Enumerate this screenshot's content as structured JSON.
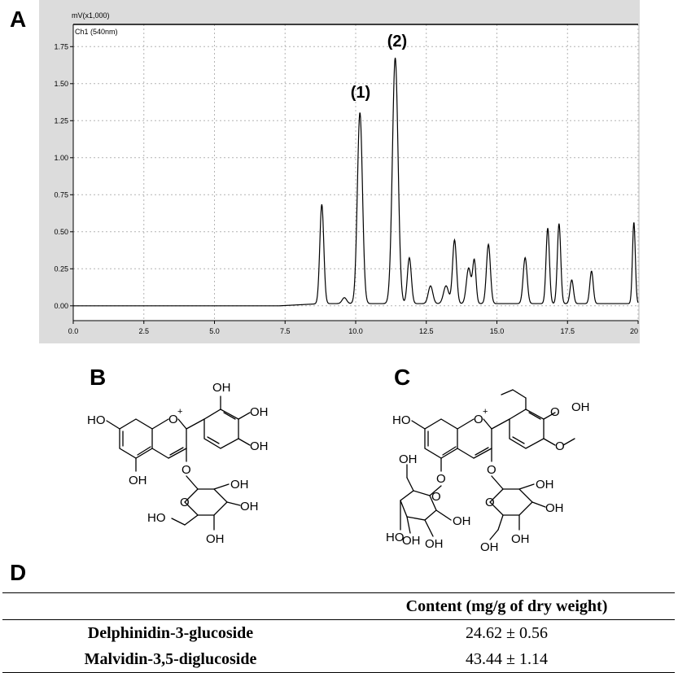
{
  "panels": {
    "a": "A",
    "b": "B",
    "c": "C",
    "d": "D"
  },
  "chromatogram": {
    "y_unit_label": "mV(x1,000)",
    "channel_label": "Ch1 (540nm)",
    "peak_labels": [
      "(1)",
      "(2)"
    ]
  },
  "chart_data": {
    "type": "line",
    "title": "",
    "xlabel": "",
    "ylabel": "mV(x1,000)",
    "xlim": [
      0,
      20
    ],
    "ylim": [
      -0.1,
      1.9
    ],
    "x_ticks": [
      "0.0",
      "2.5",
      "5.0",
      "7.5",
      "10.0",
      "12.5",
      "15.0",
      "17.5",
      "20"
    ],
    "y_ticks": [
      "0.00",
      "0.25",
      "0.50",
      "0.75",
      "1.00",
      "1.25",
      "1.50",
      "1.75"
    ],
    "grid": true,
    "series": [
      {
        "name": "Ch1 (540nm)",
        "baseline": 0.0,
        "peaks": [
          {
            "x": 8.8,
            "y": 0.67,
            "w": 0.07
          },
          {
            "x": 9.6,
            "y": 0.04,
            "w": 0.08
          },
          {
            "x": 10.15,
            "y": 1.29,
            "w": 0.09
          },
          {
            "x": 11.4,
            "y": 1.66,
            "w": 0.1
          },
          {
            "x": 11.9,
            "y": 0.31,
            "w": 0.07
          },
          {
            "x": 12.65,
            "y": 0.12,
            "w": 0.08
          },
          {
            "x": 13.2,
            "y": 0.12,
            "w": 0.09
          },
          {
            "x": 13.5,
            "y": 0.43,
            "w": 0.07
          },
          {
            "x": 14.0,
            "y": 0.24,
            "w": 0.08
          },
          {
            "x": 14.2,
            "y": 0.29,
            "w": 0.06
          },
          {
            "x": 14.7,
            "y": 0.4,
            "w": 0.07
          },
          {
            "x": 16.0,
            "y": 0.31,
            "w": 0.07
          },
          {
            "x": 16.8,
            "y": 0.51,
            "w": 0.06
          },
          {
            "x": 17.2,
            "y": 0.54,
            "w": 0.06
          },
          {
            "x": 17.65,
            "y": 0.16,
            "w": 0.06
          },
          {
            "x": 18.35,
            "y": 0.22,
            "w": 0.06
          },
          {
            "x": 19.85,
            "y": 0.55,
            "w": 0.05
          }
        ]
      }
    ]
  },
  "structures": {
    "delphinidin": {
      "oh": "OH",
      "ho": "HO",
      "o": "O",
      "plus": "+"
    },
    "malvidin": {
      "oh": "OH",
      "ho": "HO",
      "o": "O",
      "plus": "+"
    }
  },
  "table": {
    "header": [
      "",
      "Content (mg/g of dry weight)"
    ],
    "rows": [
      {
        "name": "Delphinidin-3-glucoside",
        "value": "24.62 ± 0.56"
      },
      {
        "name": "Malvidin-3,5-diglucoside",
        "value": "43.44 ± 1.14"
      }
    ]
  }
}
